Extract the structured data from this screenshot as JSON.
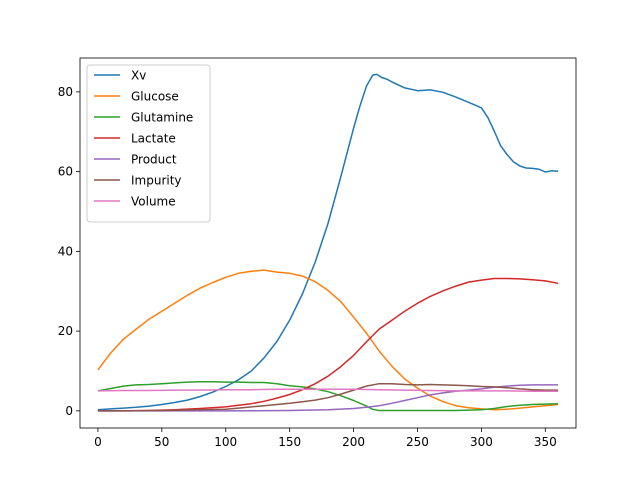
{
  "chart_data": {
    "type": "line",
    "title": "",
    "xlabel": "",
    "ylabel": "",
    "xlim": [
      -14,
      374
    ],
    "ylim": [
      -4.3,
      88.5
    ],
    "xticks": [
      0,
      50,
      100,
      150,
      200,
      250,
      300,
      350
    ],
    "yticks": [
      0,
      20,
      40,
      60,
      80
    ],
    "grid": false,
    "legend_position": "upper-left",
    "series": [
      {
        "name": "Xv",
        "color": "#1f77b4",
        "x": [
          0,
          10,
          20,
          30,
          40,
          50,
          60,
          70,
          80,
          90,
          100,
          110,
          120,
          130,
          140,
          150,
          160,
          170,
          180,
          190,
          200,
          205,
          210,
          215,
          218,
          222,
          226,
          230,
          240,
          250,
          260,
          270,
          280,
          290,
          300,
          305,
          310,
          315,
          320,
          325,
          330,
          335,
          340,
          345,
          350,
          355,
          360
        ],
        "y": [
          0.3,
          0.5,
          0.7,
          0.9,
          1.2,
          1.6,
          2.1,
          2.7,
          3.6,
          4.7,
          6.1,
          7.8,
          10,
          13.3,
          17.4,
          22.7,
          29.3,
          37.3,
          47,
          58.7,
          70.9,
          76.5,
          81.4,
          84.2,
          84.4,
          83.6,
          83.2,
          82.5,
          81,
          80.3,
          80.5,
          79.9,
          78.7,
          77.4,
          76,
          73.6,
          70.2,
          66.5,
          64.3,
          62.5,
          61.4,
          60.9,
          60.8,
          60.6,
          59.9,
          60.2,
          60.1
        ]
      },
      {
        "name": "Glucose",
        "color": "#ff7f0e",
        "x": [
          0,
          10,
          20,
          30,
          40,
          50,
          60,
          70,
          80,
          90,
          100,
          110,
          120,
          130,
          140,
          150,
          160,
          170,
          180,
          190,
          200,
          210,
          220,
          230,
          240,
          250,
          260,
          270,
          280,
          290,
          300,
          310,
          320,
          330,
          340,
          350,
          360
        ],
        "y": [
          10.3,
          14.5,
          18,
          20.5,
          23,
          25,
          27,
          29,
          30.8,
          32.2,
          33.5,
          34.5,
          35,
          35.3,
          34.8,
          34.5,
          33.8,
          32.4,
          30.2,
          27.4,
          23.5,
          19.5,
          15,
          11.2,
          8,
          5.7,
          3.7,
          2.3,
          1.3,
          0.8,
          0.5,
          0.3,
          0.4,
          0.7,
          1,
          1.3,
          1.6
        ]
      },
      {
        "name": "Glutamine",
        "color": "#2ca02c",
        "x": [
          0,
          10,
          20,
          30,
          40,
          50,
          60,
          70,
          80,
          90,
          100,
          110,
          120,
          130,
          140,
          150,
          160,
          170,
          180,
          190,
          200,
          210,
          215,
          220,
          240,
          260,
          280,
          290,
          300,
          310,
          320,
          330,
          340,
          350,
          360
        ],
        "y": [
          5,
          5.6,
          6.2,
          6.5,
          6.6,
          6.8,
          7,
          7.2,
          7.3,
          7.3,
          7.2,
          7.2,
          7.1,
          7.1,
          6.8,
          6.3,
          6,
          5.5,
          4.8,
          3.8,
          2.6,
          1.2,
          0.4,
          0.1,
          0.1,
          0.1,
          0.1,
          0.2,
          0.3,
          0.6,
          1.1,
          1.4,
          1.6,
          1.7,
          1.8
        ]
      },
      {
        "name": "Lactate",
        "color": "#d62728",
        "x": [
          0,
          20,
          40,
          60,
          80,
          100,
          110,
          120,
          130,
          140,
          150,
          160,
          170,
          180,
          190,
          200,
          210,
          220,
          230,
          240,
          250,
          260,
          270,
          280,
          290,
          300,
          310,
          320,
          330,
          340,
          350,
          360
        ],
        "y": [
          0,
          0,
          0.1,
          0.3,
          0.6,
          1,
          1.4,
          1.8,
          2.4,
          3.2,
          4.1,
          5.3,
          6.8,
          8.7,
          11.1,
          13.9,
          17.3,
          20.5,
          22.7,
          25,
          27,
          28.7,
          30.1,
          31.3,
          32.3,
          32.8,
          33.2,
          33.2,
          33.1,
          32.9,
          32.6,
          32
        ]
      },
      {
        "name": "Product",
        "color": "#9467bd",
        "x": [
          0,
          50,
          100,
          150,
          180,
          200,
          210,
          220,
          230,
          240,
          250,
          260,
          270,
          280,
          290,
          300,
          310,
          320,
          330,
          340,
          350,
          360
        ],
        "y": [
          0,
          0,
          0,
          0.1,
          0.3,
          0.6,
          0.9,
          1.3,
          1.9,
          2.6,
          3.3,
          4,
          4.5,
          4.9,
          5.2,
          5.5,
          5.9,
          6.2,
          6.4,
          6.5,
          6.5,
          6.5
        ]
      },
      {
        "name": "Impurity",
        "color": "#8c564b",
        "x": [
          0,
          50,
          100,
          110,
          120,
          130,
          140,
          150,
          160,
          170,
          180,
          190,
          200,
          210,
          220,
          230,
          240,
          250,
          260,
          270,
          280,
          290,
          300,
          310,
          320,
          330,
          340,
          350,
          360
        ],
        "y": [
          0,
          0.1,
          0.4,
          0.7,
          1,
          1.3,
          1.6,
          1.9,
          2.3,
          2.7,
          3.3,
          4.2,
          5.2,
          6.2,
          6.8,
          6.8,
          6.6,
          6.5,
          6.6,
          6.5,
          6.4,
          6.3,
          6.1,
          6,
          5.8,
          5.5,
          5.3,
          5.2,
          5.2
        ]
      },
      {
        "name": "Volume",
        "color": "#e377c2",
        "x": [
          0,
          20,
          40,
          60,
          80,
          100,
          120,
          140,
          160,
          180,
          200,
          220,
          240,
          260,
          280,
          300,
          320,
          340,
          360
        ],
        "y": [
          5,
          5.1,
          5.1,
          5.2,
          5.2,
          5.3,
          5.3,
          5.4,
          5.4,
          5.4,
          5.4,
          5.3,
          5.2,
          5.1,
          5,
          5,
          5,
          4.9,
          4.9
        ]
      }
    ]
  }
}
